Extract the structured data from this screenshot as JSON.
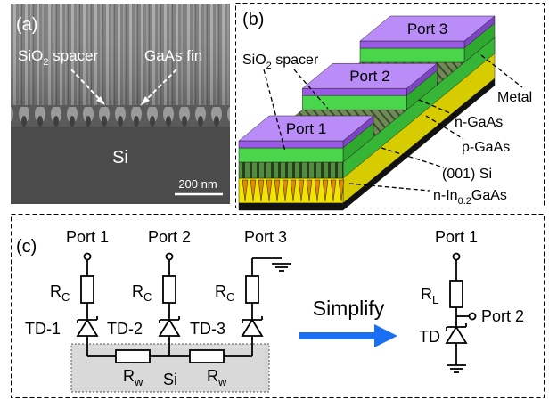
{
  "panel_a": {
    "label": "(a)",
    "spacer": {
      "main": "SiO",
      "sub": "2",
      "rest": " spacer"
    },
    "fin": "GaAs fin",
    "substrate": "Si",
    "scale_bar": "200 nm"
  },
  "panel_b": {
    "label": "(b)",
    "ports": [
      "Port 1",
      "Port 2",
      "Port 3"
    ],
    "spacer": {
      "main": "SiO",
      "sub": "2",
      "rest": " spacer"
    },
    "layers": [
      "Metal",
      "n-GaAs",
      "p-GaAs",
      "(001) Si"
    ],
    "bottom_layer": {
      "main": "n-In",
      "sub": "0.2",
      "rest": "GaAs"
    }
  },
  "panel_c": {
    "label": "(c)",
    "ports": [
      "Port 1",
      "Port 2",
      "Port 3"
    ],
    "contact_resistors": [
      {
        "main": "R",
        "sub": "C"
      },
      {
        "main": "R",
        "sub": "C"
      },
      {
        "main": "R",
        "sub": "C"
      }
    ],
    "diodes": [
      "TD-1",
      "TD-2",
      "TD-3"
    ],
    "wire_resistors": [
      {
        "main": "R",
        "sub": "w"
      },
      {
        "main": "R",
        "sub": "w"
      }
    ],
    "substrate": "Si",
    "action": "Simplify",
    "simplified": {
      "ports": [
        "Port 1",
        "Port 2"
      ],
      "resistor": {
        "main": "R",
        "sub": "L"
      },
      "diode": "TD"
    }
  }
}
